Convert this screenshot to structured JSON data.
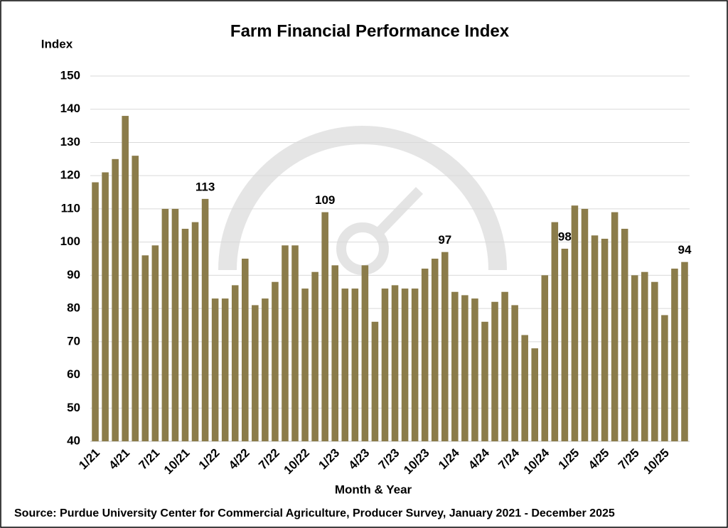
{
  "chart_data": {
    "type": "bar",
    "title": "Farm Financial Performance Index",
    "y_label": "Index",
    "x_label": "Month & Year",
    "source": "Source: Purdue University Center for Commercial Agriculture, Producer Survey, January 2021 - December 2025",
    "categories": [
      "1/21",
      null,
      null,
      "4/21",
      null,
      null,
      "7/21",
      null,
      null,
      "10/21",
      null,
      null,
      "1/22",
      null,
      null,
      "4/22",
      null,
      null,
      "7/22",
      null,
      null,
      "10/22",
      null,
      null,
      "1/23",
      null,
      null,
      "4/23",
      null,
      null,
      "7/23",
      null,
      null,
      "10/23",
      null,
      null,
      "1/24",
      null,
      null,
      "4/24",
      null,
      null,
      "7/24",
      null,
      null,
      "10/24",
      null,
      null,
      "1/25",
      null,
      null,
      "4/25",
      null,
      null,
      "7/25",
      null,
      null,
      "10/25",
      null,
      null
    ],
    "values": [
      118,
      121,
      125,
      138,
      126,
      96,
      99,
      110,
      110,
      104,
      106,
      113,
      83,
      83,
      87,
      95,
      81,
      83,
      88,
      99,
      99,
      86,
      91,
      109,
      93,
      86,
      86,
      93,
      76,
      86,
      87,
      86,
      86,
      92,
      95,
      97,
      85,
      84,
      83,
      76,
      82,
      85,
      81,
      72,
      68,
      90,
      106,
      98,
      111,
      110,
      102,
      101,
      109,
      104,
      90,
      91,
      88,
      78,
      92,
      94
    ],
    "value_labels": [
      null,
      null,
      null,
      null,
      null,
      null,
      null,
      null,
      null,
      null,
      null,
      "113",
      null,
      null,
      null,
      null,
      null,
      null,
      null,
      null,
      null,
      null,
      null,
      "109",
      null,
      null,
      null,
      null,
      null,
      null,
      null,
      null,
      null,
      null,
      null,
      "97",
      null,
      null,
      null,
      null,
      null,
      null,
      null,
      null,
      null,
      null,
      null,
      "98",
      null,
      null,
      null,
      null,
      null,
      null,
      null,
      null,
      null,
      null,
      null,
      "94"
    ],
    "color": "#8b7c4a",
    "ylim": [
      40,
      150
    ],
    "yticks": [
      40,
      50,
      60,
      70,
      80,
      90,
      100,
      110,
      120,
      130,
      140,
      150
    ],
    "grid": true
  }
}
